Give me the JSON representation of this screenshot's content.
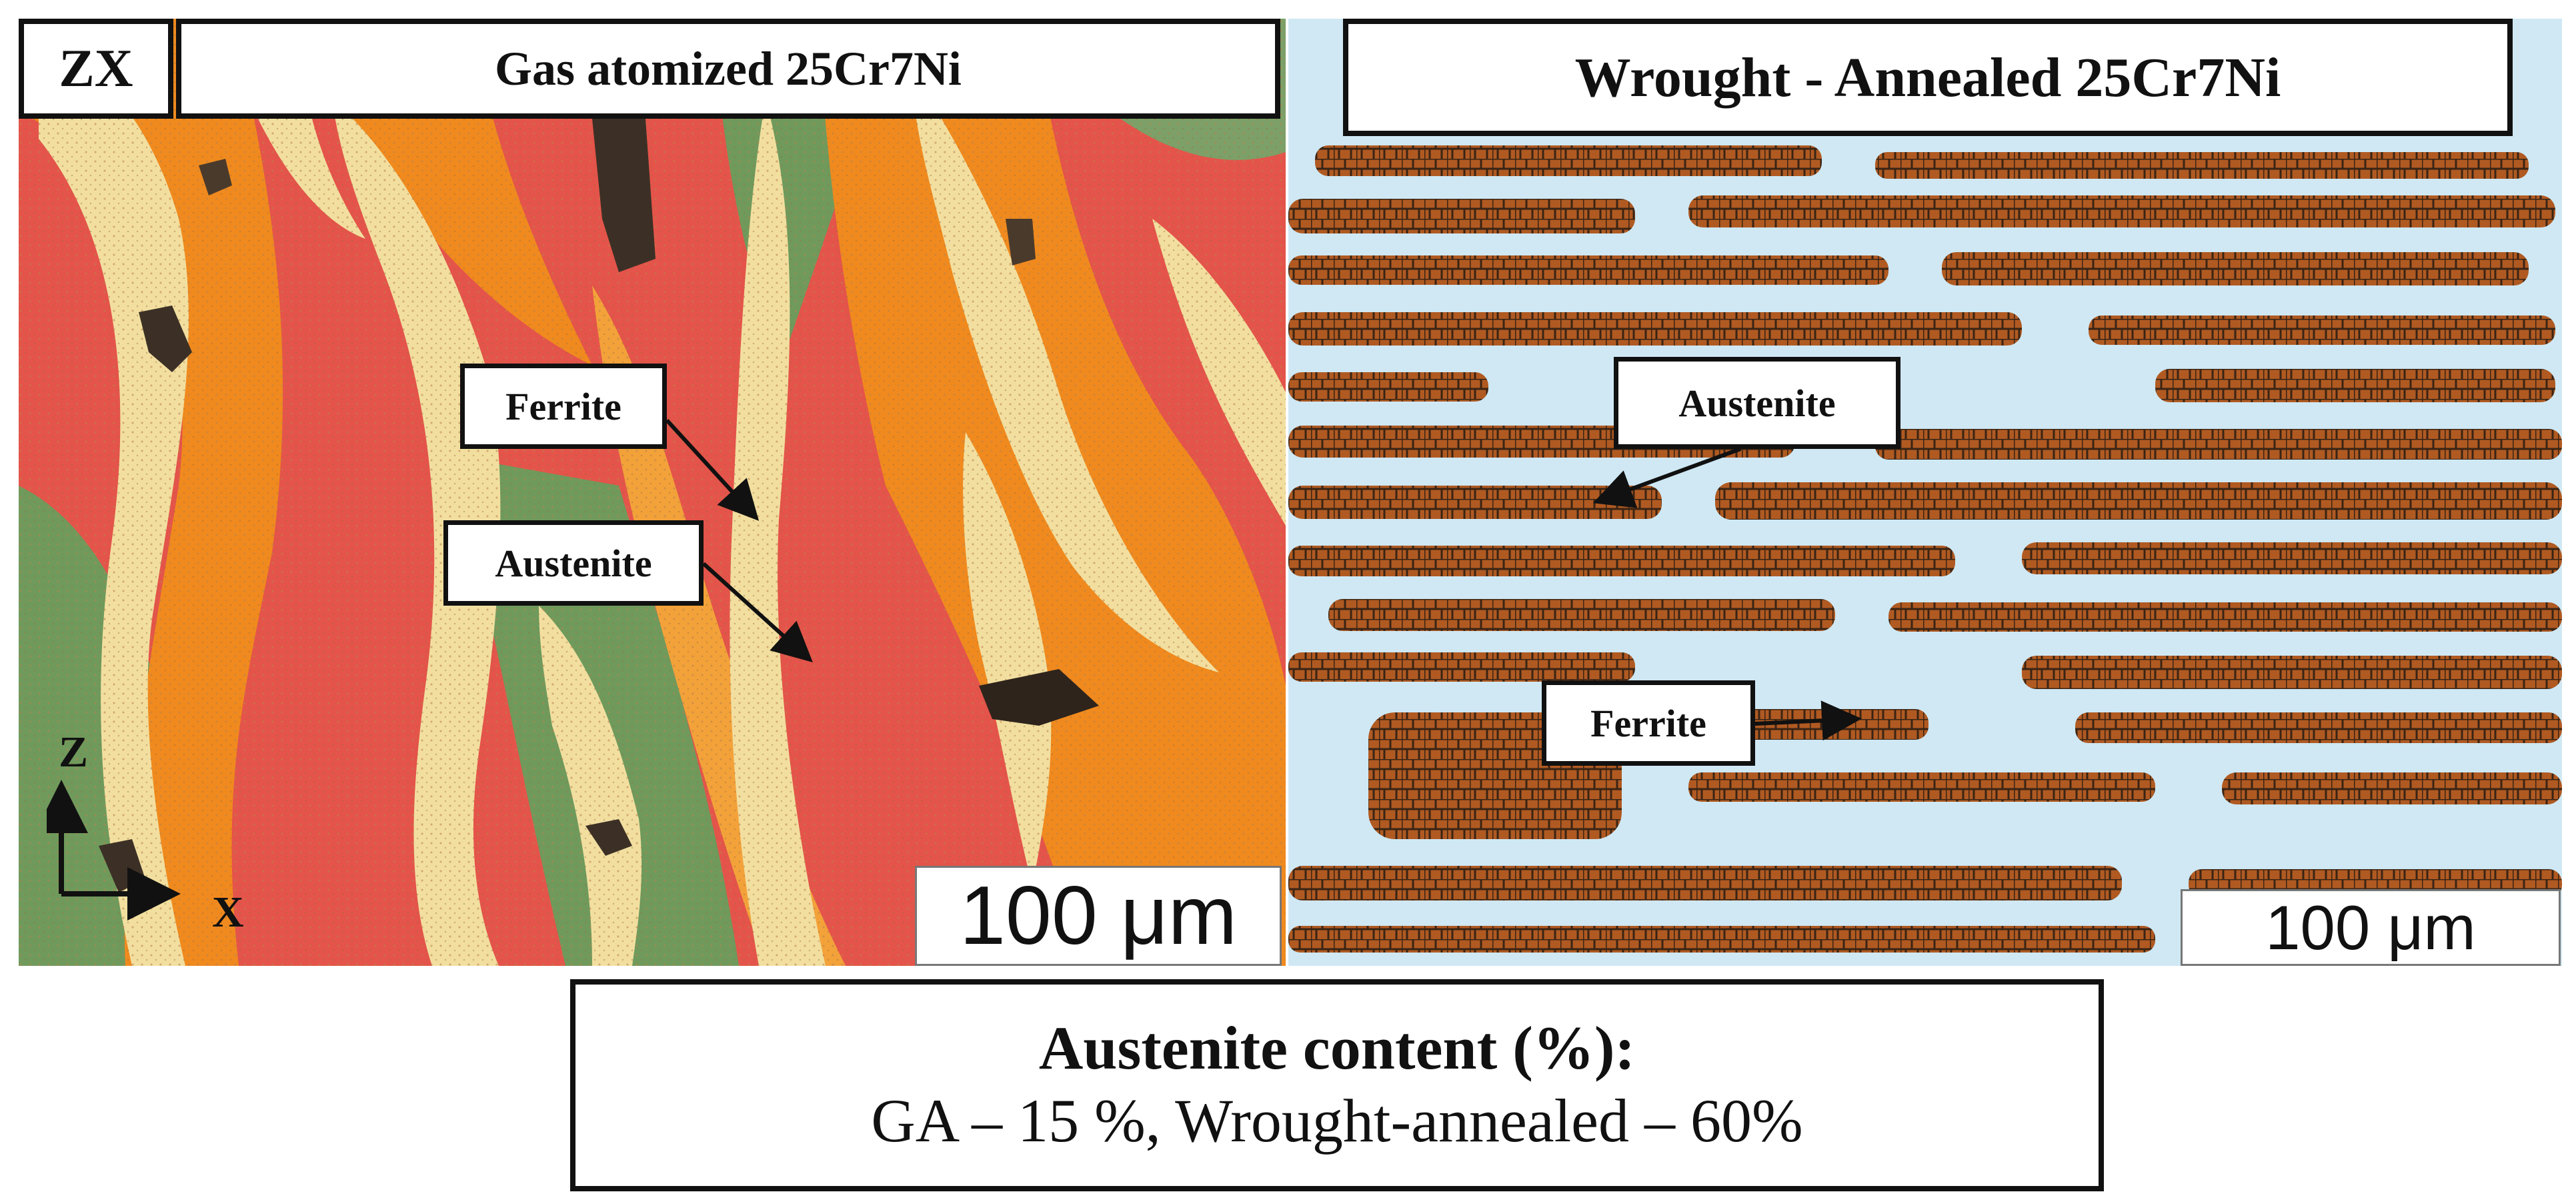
{
  "left_panel": {
    "view_tag": "ZX",
    "title": "Gas atomized 25Cr7Ni",
    "labels": {
      "ferrite": "Ferrite",
      "austenite": "Austenite"
    },
    "axes": {
      "vertical": "Z",
      "horizontal": "X"
    },
    "scale_bar": "100 μm",
    "colors": {
      "austenite": "#f2dfa0",
      "orange": "#f08a1e",
      "red": "#e4544a",
      "green": "#6f9a5c",
      "pores": "#3c3026"
    }
  },
  "right_panel": {
    "title": "Wrought - Annealed 25Cr7Ni",
    "labels": {
      "austenite": "Austenite",
      "ferrite": "Ferrite"
    },
    "scale_bar": "100 μm",
    "colors": {
      "matrix": "#cfe8f4",
      "ferrite": "#b05a22",
      "grain_boundary": "#3a2414"
    }
  },
  "summary": {
    "heading": "Austenite content (%):",
    "values": "GA – 15 %, Wrought-annealed – 60%"
  }
}
